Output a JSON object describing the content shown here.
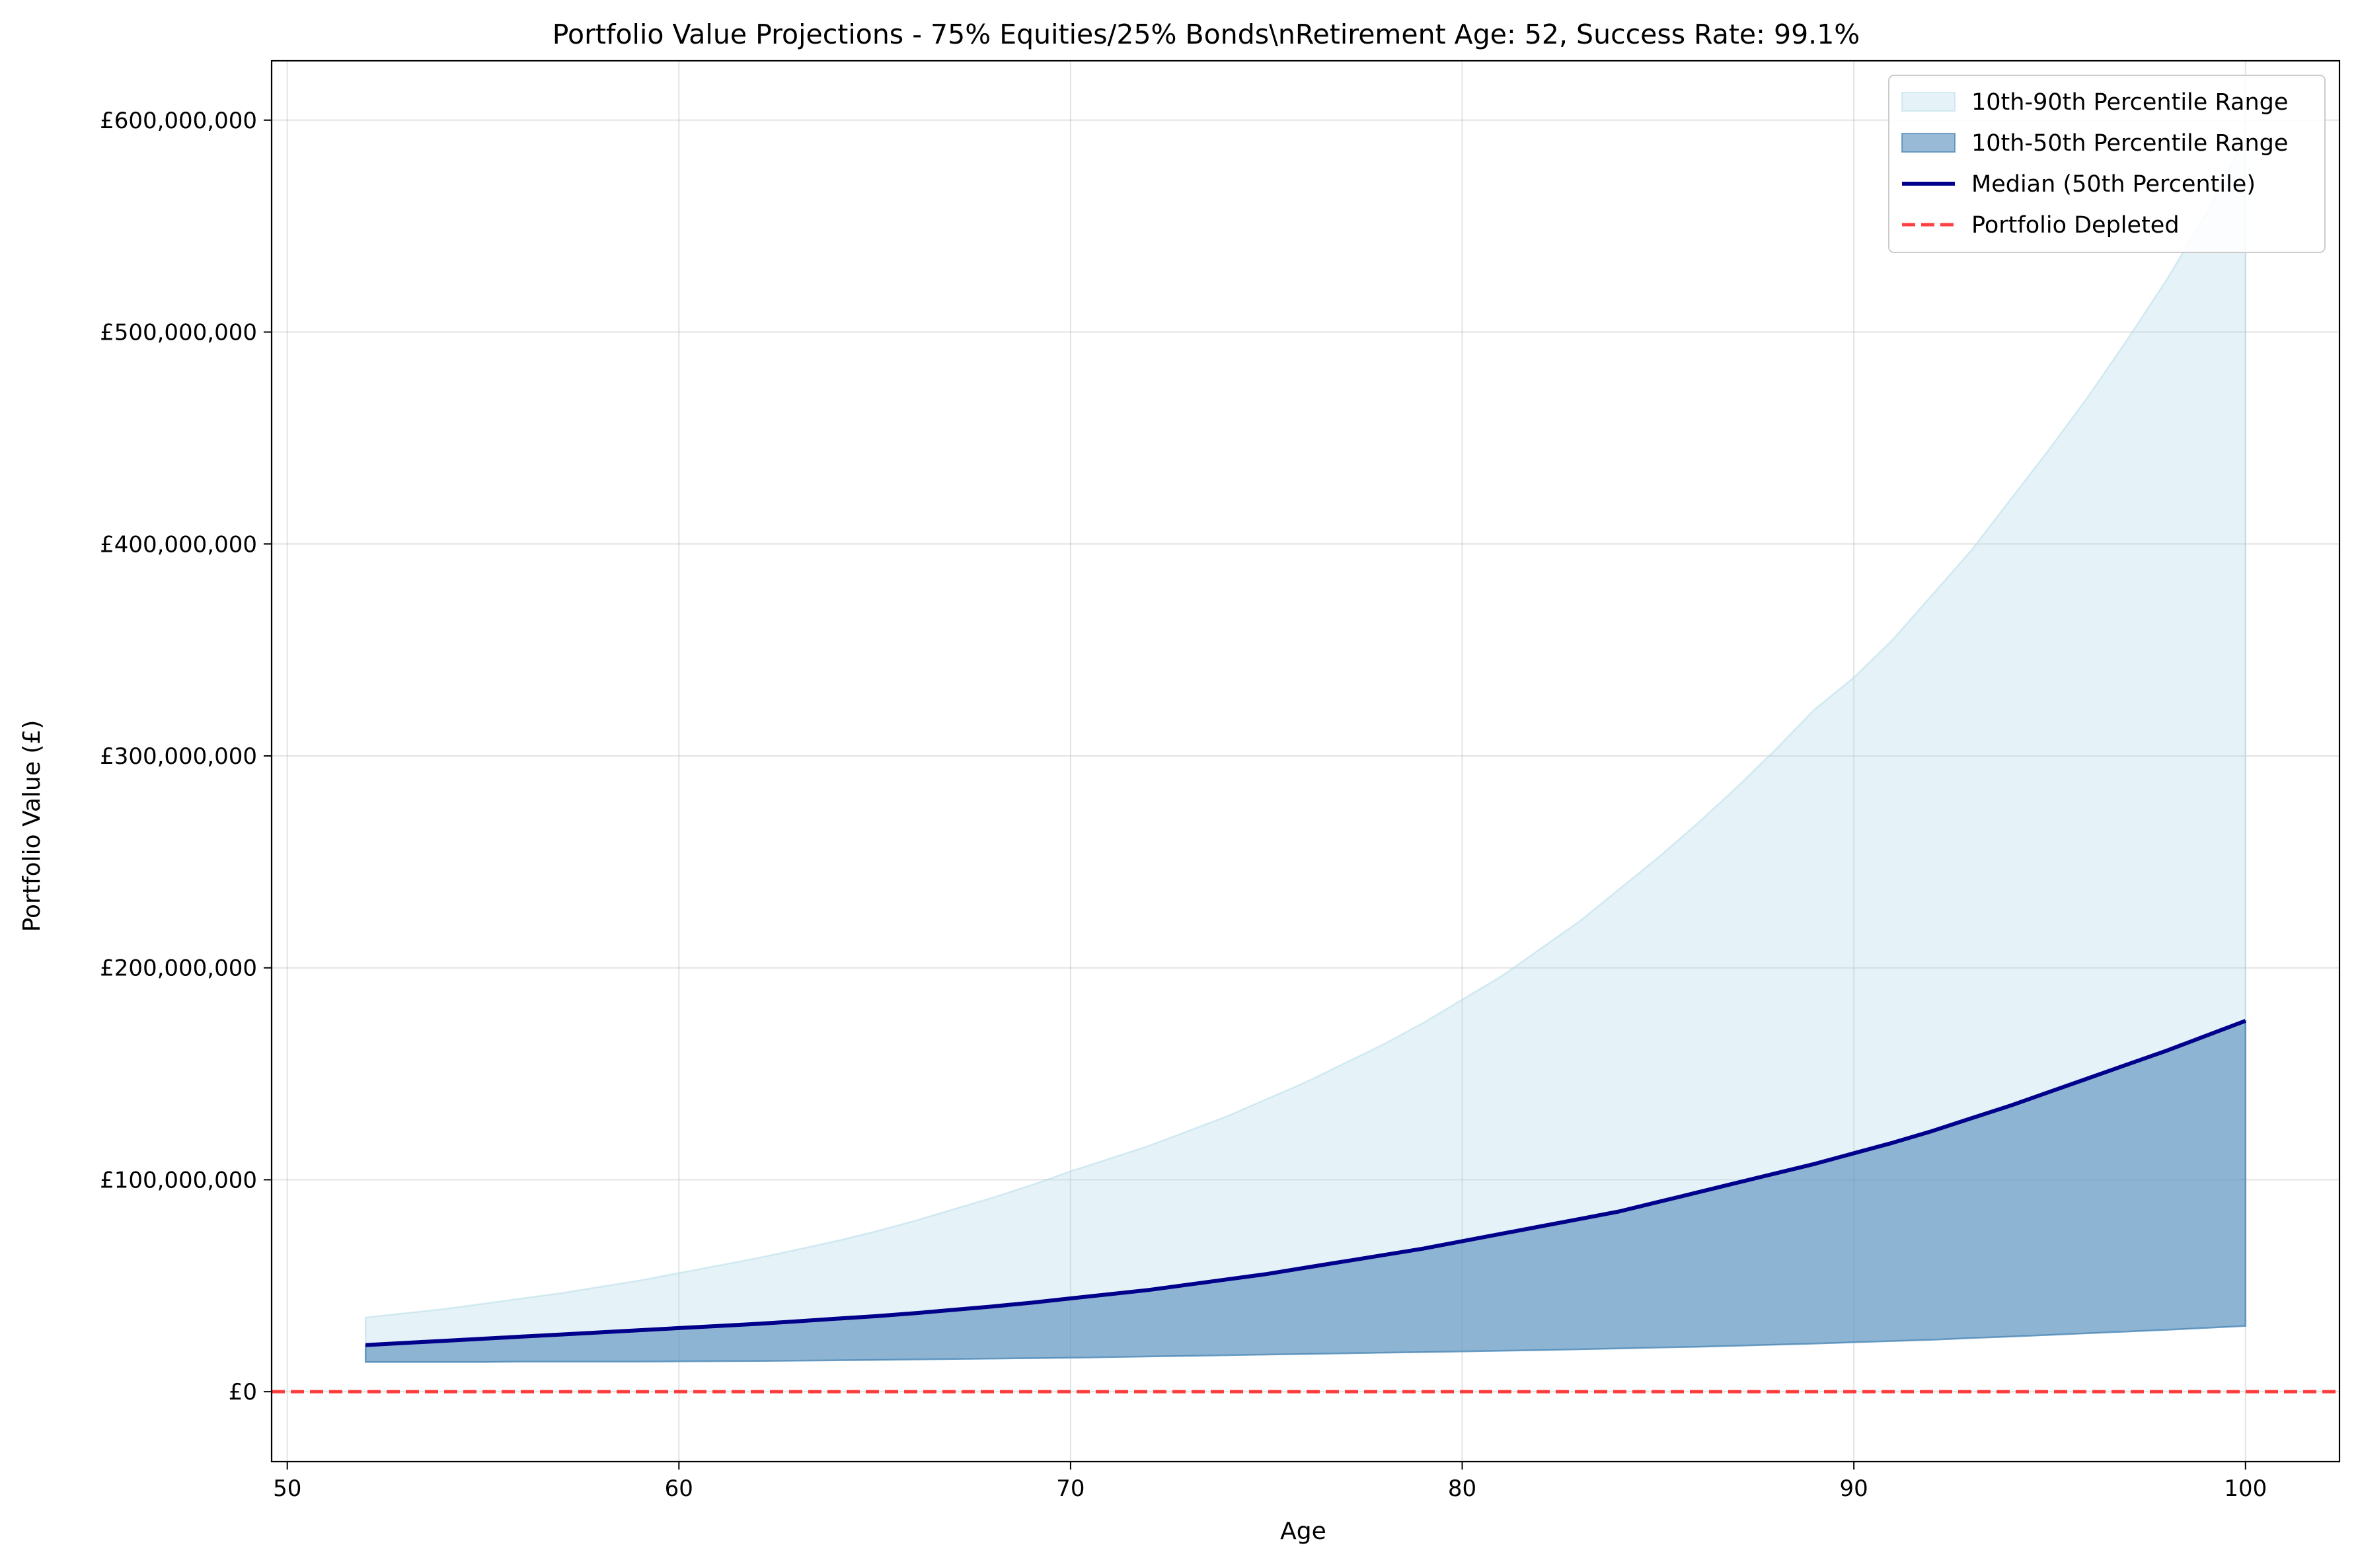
{
  "chart_data": {
    "type": "area",
    "title": "Portfolio Value Projections - 75% Equities/25% Bonds\\nRetirement Age: 52, Success Rate: 99.1%",
    "xlabel": "Age",
    "ylabel": "Portfolio Value (£)",
    "xlim": [
      49.6,
      102.4
    ],
    "ylim": [
      -33000000,
      628000000
    ],
    "x_ticks": [
      50,
      60,
      70,
      80,
      90,
      100
    ],
    "y_ticks": [
      0,
      100000000,
      200000000,
      300000000,
      400000000,
      500000000,
      600000000
    ],
    "y_tick_labels": [
      "£0",
      "£100,000,000",
      "£200,000,000",
      "£300,000,000",
      "£400,000,000",
      "£500,000,000",
      "£600,000,000"
    ],
    "grid": true,
    "legend_position": "top-right",
    "x": [
      52,
      53,
      54,
      55,
      56,
      57,
      58,
      59,
      60,
      61,
      62,
      63,
      64,
      65,
      66,
      67,
      68,
      69,
      70,
      71,
      72,
      73,
      74,
      75,
      76,
      77,
      78,
      79,
      80,
      81,
      82,
      83,
      84,
      85,
      86,
      87,
      88,
      89,
      90,
      91,
      92,
      93,
      94,
      95,
      96,
      97,
      98,
      99,
      100
    ],
    "series": [
      {
        "name": "10th-90th Percentile Range",
        "kind": "band",
        "color": "#add8e6",
        "lower": [
          14000000,
          14000000,
          14000000,
          14000000,
          14200000,
          14200000,
          14200000,
          14200000,
          14300000,
          14400000,
          14500000,
          14600000,
          14800000,
          15000000,
          15200000,
          15400000,
          15600000,
          15800000,
          16000000,
          16300000,
          16600000,
          16900000,
          17200000,
          17500000,
          17800000,
          18100000,
          18400000,
          18700000,
          19000000,
          19300000,
          19600000,
          20000000,
          20400000,
          20800000,
          21200000,
          21700000,
          22200000,
          22700000,
          23300000,
          23900000,
          24500000,
          25300000,
          26000000,
          26800000,
          27600000,
          28400000,
          29200000,
          30100000,
          31000000
        ],
        "upper": [
          35000000,
          37000000,
          39000000,
          41500000,
          44000000,
          46500000,
          49500000,
          52500000,
          56000000,
          59500000,
          63000000,
          67000000,
          71000000,
          75500000,
          80500000,
          86000000,
          91500000,
          97500000,
          104000000,
          110000000,
          116000000,
          123000000,
          130000000,
          138000000,
          146000000,
          155000000,
          164000000,
          174000000,
          185000000,
          196000000,
          209000000,
          222000000,
          237000000,
          252000000,
          268000000,
          285000000,
          303000000,
          322000000,
          337000000,
          355000000,
          376000000,
          397000000,
          421000000,
          445000000,
          470000000,
          497000000,
          525000000,
          556000000,
          592000000
        ]
      },
      {
        "name": "10th-50th Percentile Range",
        "kind": "band",
        "color": "#4682b4",
        "lower": [
          14000000,
          14000000,
          14000000,
          14000000,
          14200000,
          14200000,
          14200000,
          14200000,
          14300000,
          14400000,
          14500000,
          14600000,
          14800000,
          15000000,
          15200000,
          15400000,
          15600000,
          15800000,
          16000000,
          16300000,
          16600000,
          16900000,
          17200000,
          17500000,
          17800000,
          18100000,
          18400000,
          18700000,
          19000000,
          19300000,
          19600000,
          20000000,
          20400000,
          20800000,
          21200000,
          21700000,
          22200000,
          22700000,
          23300000,
          23900000,
          24500000,
          25300000,
          26000000,
          26800000,
          27600000,
          28400000,
          29200000,
          30100000,
          31000000
        ],
        "upper": [
          22000000,
          23000000,
          24000000,
          25000000,
          26000000,
          27000000,
          28000000,
          29000000,
          30000000,
          31000000,
          32000000,
          33200000,
          34400000,
          35600000,
          37000000,
          38600000,
          40200000,
          42000000,
          44000000,
          46000000,
          48000000,
          50500000,
          53000000,
          55500000,
          58500000,
          61500000,
          64500000,
          67500000,
          71000000,
          74500000,
          78000000,
          81500000,
          85000000,
          89500000,
          94000000,
          98500000,
          103000000,
          107500000,
          112500000,
          117500000,
          123000000,
          129000000,
          135000000,
          141500000,
          148000000,
          154500000,
          161000000,
          168000000,
          175000000
        ]
      },
      {
        "name": "Median (50th Percentile)",
        "kind": "line",
        "color": "#00008b",
        "values": [
          22000000,
          23000000,
          24000000,
          25000000,
          26000000,
          27000000,
          28000000,
          29000000,
          30000000,
          31000000,
          32000000,
          33200000,
          34400000,
          35600000,
          37000000,
          38600000,
          40200000,
          42000000,
          44000000,
          46000000,
          48000000,
          50500000,
          53000000,
          55500000,
          58500000,
          61500000,
          64500000,
          67500000,
          71000000,
          74500000,
          78000000,
          81500000,
          85000000,
          89500000,
          94000000,
          98500000,
          103000000,
          107500000,
          112500000,
          117500000,
          123000000,
          129000000,
          135000000,
          141500000,
          148000000,
          154500000,
          161000000,
          168000000,
          175000000
        ]
      },
      {
        "name": "Portfolio Depleted",
        "kind": "hline",
        "color": "#ff0000",
        "y": 0
      }
    ]
  }
}
